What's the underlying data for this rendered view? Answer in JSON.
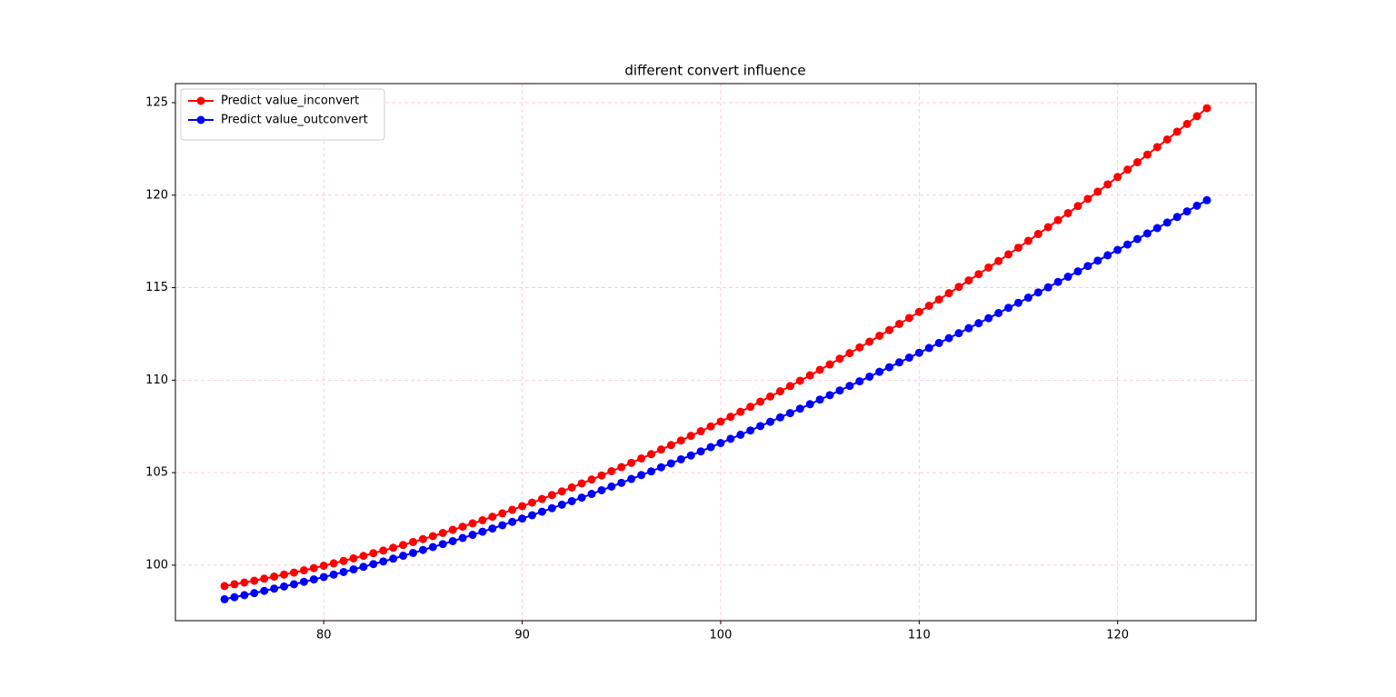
{
  "chart_data": {
    "type": "line",
    "title": "different convert influence",
    "x": [
      75,
      75.5,
      76,
      76.5,
      77,
      77.5,
      78,
      78.5,
      79,
      79.5,
      80,
      80.5,
      81,
      81.5,
      82,
      82.5,
      83,
      83.5,
      84,
      84.5,
      85,
      85.5,
      86,
      86.5,
      87,
      87.5,
      88,
      88.5,
      89,
      89.5,
      90,
      90.5,
      91,
      91.5,
      92,
      92.5,
      93,
      93.5,
      94,
      94.5,
      95,
      95.5,
      96,
      96.5,
      97,
      97.5,
      98,
      98.5,
      99,
      99.5,
      100,
      100.5,
      101,
      101.5,
      102,
      102.5,
      103,
      103.5,
      104,
      104.5,
      105,
      105.5,
      106,
      106.5,
      107,
      107.5,
      108,
      108.5,
      109,
      109.5,
      110,
      110.5,
      111,
      111.5,
      112,
      112.5,
      113,
      113.5,
      114,
      114.5,
      115,
      115.5,
      116,
      116.5,
      117,
      117.5,
      118,
      118.5,
      119,
      119.5,
      120,
      120.5,
      121,
      121.5,
      122,
      122.5,
      123,
      123.5,
      124,
      124.5
    ],
    "series": [
      {
        "name": "Predict value_inconvert",
        "color": "#ff0000",
        "values": [
          98.87,
          98.97,
          99.06,
          99.16,
          99.27,
          99.38,
          99.49,
          99.6,
          99.72,
          99.84,
          99.97,
          100.1,
          100.23,
          100.37,
          100.5,
          100.65,
          100.79,
          100.94,
          101.09,
          101.25,
          101.41,
          101.57,
          101.74,
          101.91,
          102.08,
          102.26,
          102.43,
          102.62,
          102.8,
          102.99,
          103.19,
          103.38,
          103.58,
          103.79,
          103.99,
          104.2,
          104.42,
          104.63,
          104.85,
          105.08,
          105.3,
          105.53,
          105.77,
          106.0,
          106.25,
          106.49,
          106.74,
          106.99,
          107.24,
          107.5,
          107.76,
          108.02,
          108.29,
          108.56,
          108.84,
          109.12,
          109.4,
          109.68,
          109.97,
          110.26,
          110.56,
          110.85,
          111.16,
          111.46,
          111.77,
          112.08,
          112.4,
          112.71,
          113.04,
          113.36,
          113.69,
          114.02,
          114.36,
          114.7,
          115.04,
          115.39,
          115.73,
          116.09,
          116.44,
          116.8,
          117.16,
          117.53,
          117.9,
          118.27,
          118.65,
          119.03,
          119.41,
          119.8,
          120.19,
          120.58,
          120.98,
          121.38,
          121.78,
          122.19,
          122.6,
          123.01,
          123.43,
          123.85,
          124.27,
          124.7
        ]
      },
      {
        "name": "Predict value_outconvert",
        "color": "#0000ff",
        "values": [
          98.16,
          98.27,
          98.38,
          98.49,
          98.61,
          98.73,
          98.85,
          98.97,
          99.1,
          99.23,
          99.36,
          99.49,
          99.63,
          99.77,
          99.91,
          100.06,
          100.2,
          100.35,
          100.51,
          100.66,
          100.82,
          100.98,
          101.14,
          101.3,
          101.47,
          101.64,
          101.81,
          101.98,
          102.16,
          102.34,
          102.52,
          102.7,
          102.89,
          103.08,
          103.27,
          103.46,
          103.65,
          103.85,
          104.05,
          104.25,
          104.45,
          104.66,
          104.87,
          105.07,
          105.29,
          105.5,
          105.72,
          105.93,
          106.15,
          106.38,
          106.6,
          106.83,
          107.05,
          107.28,
          107.52,
          107.75,
          107.99,
          108.22,
          108.46,
          108.7,
          108.95,
          109.19,
          109.44,
          109.69,
          109.94,
          110.19,
          110.45,
          110.7,
          110.96,
          111.22,
          111.48,
          111.74,
          112.01,
          112.27,
          112.54,
          112.81,
          113.08,
          113.35,
          113.63,
          113.91,
          114.18,
          114.46,
          114.74,
          115.02,
          115.31,
          115.59,
          115.88,
          116.17,
          116.46,
          116.75,
          117.04,
          117.33,
          117.63,
          117.93,
          118.22,
          118.52,
          118.82,
          119.12,
          119.43,
          119.73
        ]
      }
    ],
    "xlim": [
      72.525,
      126.975
    ],
    "xticks": [
      80,
      90,
      100,
      110,
      120
    ],
    "ylim": [
      97.0,
      126.03
    ],
    "yticks": [
      100,
      105,
      110,
      115,
      120,
      125
    ],
    "grid": true,
    "grid_color": "#ffc0cb",
    "legend": "upper left"
  }
}
